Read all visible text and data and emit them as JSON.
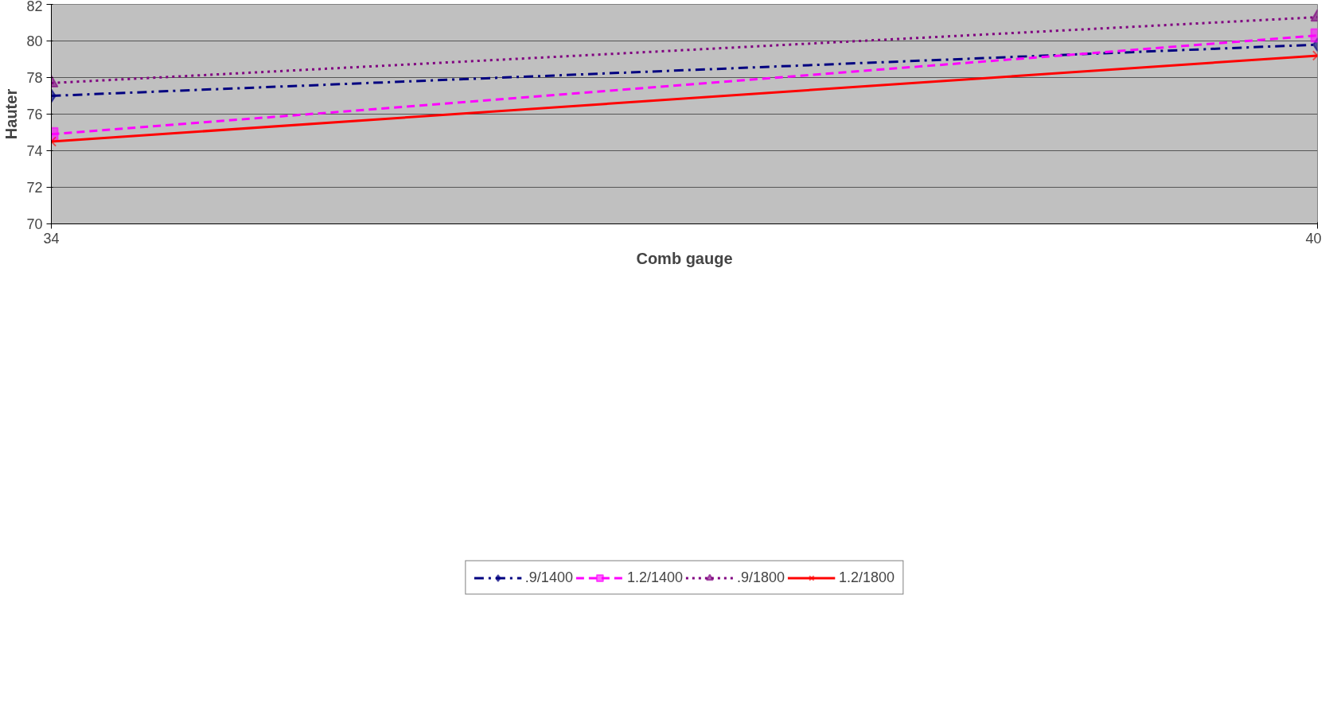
{
  "chart_data": {
    "type": "line",
    "xlabel": "Comb gauge",
    "ylabel": "Hauter",
    "x": [
      34,
      40
    ],
    "xlim": [
      34,
      40
    ],
    "xticks": [
      34,
      40
    ],
    "ylim": [
      70,
      82
    ],
    "yticks": [
      70,
      72,
      74,
      76,
      78,
      80,
      82
    ],
    "grid": "y",
    "legend": "bottom",
    "series": [
      {
        "name": ".9/1400",
        "color": "#000080",
        "values": [
          77.0,
          79.8
        ],
        "marker": "diamond",
        "line_style": "dashdot"
      },
      {
        "name": "1.2/1400",
        "color": "#ff00ff",
        "values": [
          74.9,
          80.3
        ],
        "marker": "square",
        "line_style": "dashed"
      },
      {
        "name": ".9/1800",
        "color": "#800080",
        "values": [
          77.7,
          81.3
        ],
        "marker": "triangle",
        "line_style": "dotted"
      },
      {
        "name": "1.2/1800",
        "color": "#ff0000",
        "values": [
          74.5,
          79.2
        ],
        "marker": "cross",
        "line_style": "solid"
      }
    ]
  }
}
